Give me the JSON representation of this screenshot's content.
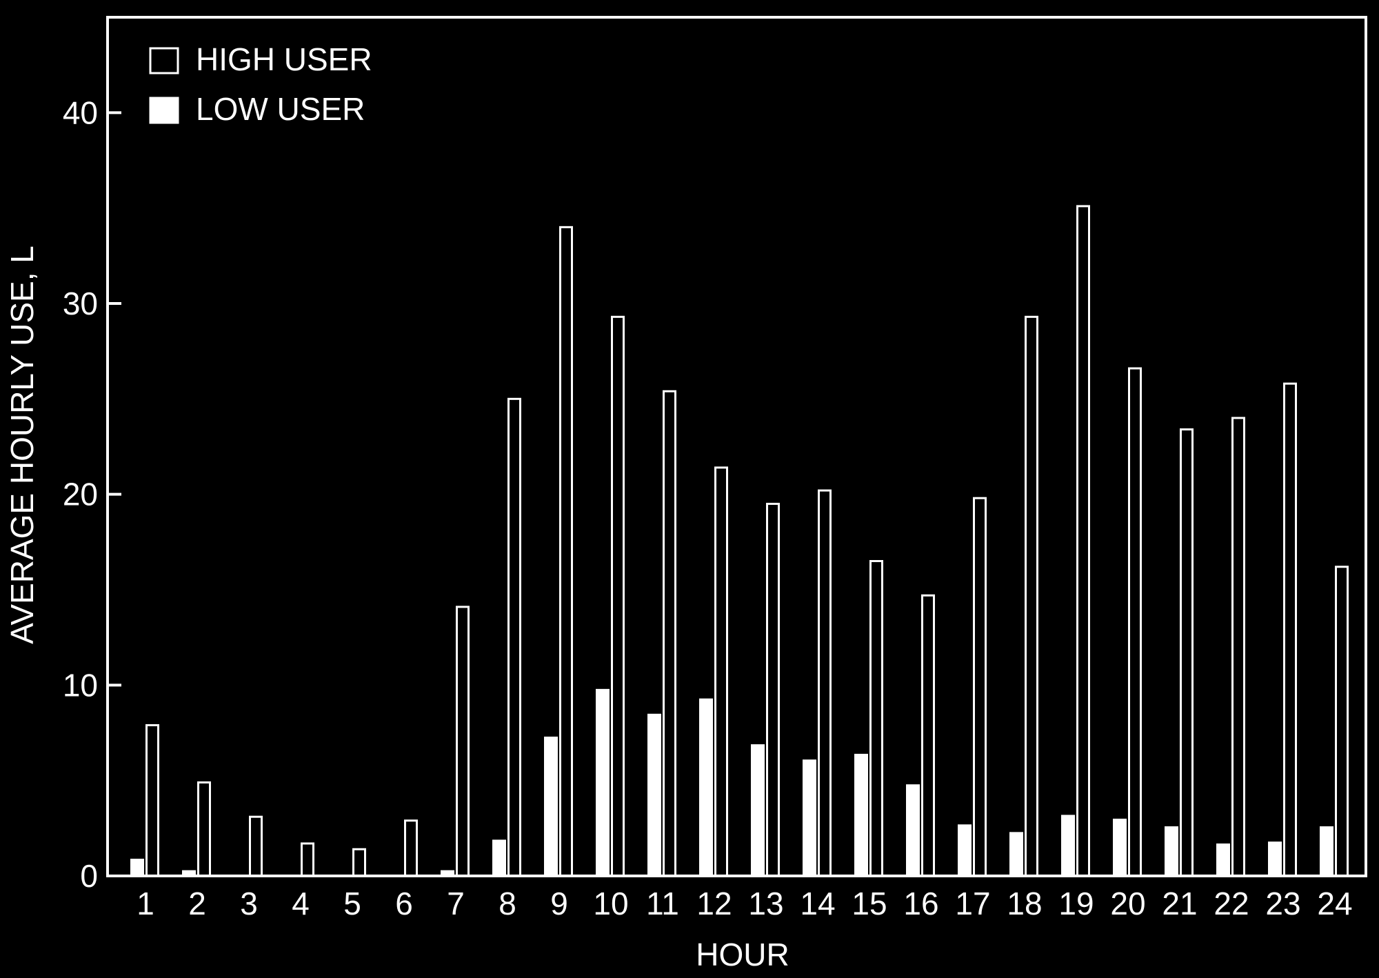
{
  "chart_data": {
    "type": "bar",
    "xlabel": "HOUR",
    "ylabel": "AVERAGE HOURLY USE, L",
    "ylim": [
      0,
      45
    ],
    "yticks": [
      0,
      10,
      20,
      30,
      40
    ],
    "categories": [
      "1",
      "2",
      "3",
      "4",
      "5",
      "6",
      "7",
      "8",
      "9",
      "10",
      "11",
      "12",
      "13",
      "14",
      "15",
      "16",
      "17",
      "18",
      "19",
      "20",
      "21",
      "22",
      "23",
      "24"
    ],
    "series": [
      {
        "name": "LOW USER",
        "fill": "solid",
        "values": [
          0.9,
          0.3,
          0.0,
          0.0,
          0.0,
          0.0,
          0.3,
          1.9,
          7.3,
          9.8,
          8.5,
          9.3,
          6.9,
          6.1,
          6.4,
          4.8,
          2.7,
          2.3,
          3.2,
          3.0,
          2.6,
          1.7,
          1.8,
          2.6
        ]
      },
      {
        "name": "HIGH USER",
        "fill": "hollow",
        "values": [
          7.9,
          4.9,
          3.1,
          1.7,
          1.4,
          2.9,
          14.1,
          25.0,
          34.0,
          29.3,
          25.4,
          21.4,
          19.5,
          20.2,
          16.5,
          14.7,
          19.8,
          29.3,
          35.1,
          26.6,
          23.4,
          24.0,
          25.8,
          16.2
        ]
      }
    ],
    "legend": {
      "placement": "top-left"
    },
    "grid": false,
    "colors": {
      "background": "#000000",
      "foreground": "#ffffff"
    }
  }
}
